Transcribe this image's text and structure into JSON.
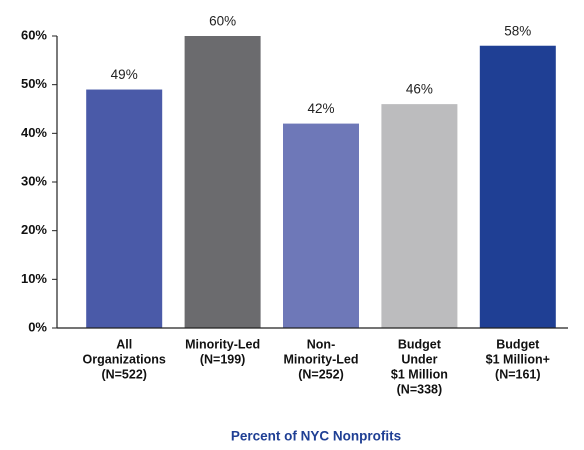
{
  "chart_data": {
    "type": "bar",
    "x_label": "Percent of NYC Nonprofits",
    "categories": [
      [
        "All",
        "Organizations",
        "(N=522)"
      ],
      [
        "Minority-Led",
        "(N=199)"
      ],
      [
        "Non-",
        "Minority-Led",
        "(N=252)"
      ],
      [
        "Budget",
        "Under",
        "$1 Million",
        "(N=338)"
      ],
      [
        "Budget",
        "$1 Million+",
        "(N=161)"
      ]
    ],
    "values": [
      49,
      60,
      42,
      46,
      58
    ],
    "value_labels": [
      "49%",
      "60%",
      "42%",
      "46%",
      "58%"
    ],
    "colors": [
      "#4a5aa8",
      "#6b6b6e",
      "#6e78b8",
      "#bcbcbe",
      "#1f3f94"
    ],
    "ylim": [
      0,
      60
    ],
    "yticks": [
      {
        "value": 0,
        "label": "0%"
      },
      {
        "value": 10,
        "label": "10%"
      },
      {
        "value": 20,
        "label": "20%"
      },
      {
        "value": 30,
        "label": "30%"
      },
      {
        "value": 40,
        "label": "40%"
      },
      {
        "value": 50,
        "label": "50%"
      },
      {
        "value": 60,
        "label": "60%"
      }
    ]
  }
}
